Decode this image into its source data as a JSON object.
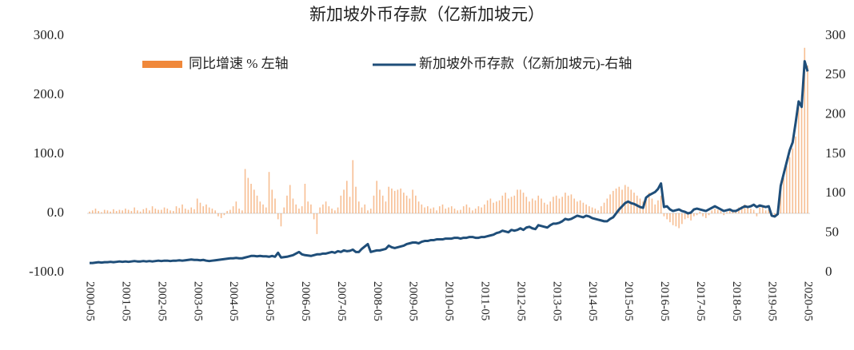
{
  "chart_data": {
    "type": "bar",
    "title": "新加坡外币存款（亿新加坡元）",
    "categories": [
      "2000-05",
      null,
      null,
      null,
      null,
      null,
      null,
      null,
      null,
      null,
      null,
      null,
      "2001-05",
      null,
      null,
      null,
      null,
      null,
      null,
      null,
      null,
      null,
      null,
      null,
      "2002-05",
      null,
      null,
      null,
      null,
      null,
      null,
      null,
      null,
      null,
      null,
      null,
      "2003-05",
      null,
      null,
      null,
      null,
      null,
      null,
      null,
      null,
      null,
      null,
      null,
      "2004-05",
      null,
      null,
      null,
      null,
      null,
      null,
      null,
      null,
      null,
      null,
      null,
      "2005-05",
      null,
      null,
      null,
      null,
      null,
      null,
      null,
      null,
      null,
      null,
      null,
      "2006-05",
      null,
      null,
      null,
      null,
      null,
      null,
      null,
      null,
      null,
      null,
      null,
      "2007-05",
      null,
      null,
      null,
      null,
      null,
      null,
      null,
      null,
      null,
      null,
      null,
      "2008-05",
      null,
      null,
      null,
      null,
      null,
      null,
      null,
      null,
      null,
      null,
      null,
      "2009-05",
      null,
      null,
      null,
      null,
      null,
      null,
      null,
      null,
      null,
      null,
      null,
      "2010-05",
      null,
      null,
      null,
      null,
      null,
      null,
      null,
      null,
      null,
      null,
      null,
      "2011-05",
      null,
      null,
      null,
      null,
      null,
      null,
      null,
      null,
      null,
      null,
      null,
      "2012-05",
      null,
      null,
      null,
      null,
      null,
      null,
      null,
      null,
      null,
      null,
      null,
      "2013-05",
      null,
      null,
      null,
      null,
      null,
      null,
      null,
      null,
      null,
      null,
      null,
      "2014-05",
      null,
      null,
      null,
      null,
      null,
      null,
      null,
      null,
      null,
      null,
      null,
      "2015-05",
      null,
      null,
      null,
      null,
      null,
      null,
      null,
      null,
      null,
      null,
      null,
      "2016-05",
      null,
      null,
      null,
      null,
      null,
      null,
      null,
      null,
      null,
      null,
      null,
      "2017-05",
      null,
      null,
      null,
      null,
      null,
      null,
      null,
      null,
      null,
      null,
      null,
      "2018-05",
      null,
      null,
      null,
      null,
      null,
      null,
      null,
      null,
      null,
      null,
      null,
      "2019-05",
      null,
      null,
      null,
      null,
      null,
      null,
      null,
      null,
      null,
      null,
      null,
      "2020-05"
    ],
    "series": [
      {
        "name": "同比增速 % 左轴",
        "type": "bar",
        "color": "#f0883a",
        "axis": "y",
        "values": [
          3,
          5,
          8,
          4,
          2,
          6,
          5,
          3,
          7,
          4,
          6,
          5,
          8,
          6,
          4,
          10,
          5,
          3,
          7,
          9,
          5,
          12,
          8,
          6,
          6,
          10,
          8,
          5,
          4,
          12,
          9,
          15,
          8,
          6,
          10,
          7,
          25,
          18,
          12,
          15,
          10,
          8,
          5,
          -5,
          -8,
          -3,
          4,
          6,
          12,
          20,
          8,
          5,
          75,
          60,
          50,
          40,
          30,
          20,
          15,
          10,
          70,
          40,
          25,
          -10,
          -22,
          10,
          30,
          48,
          25,
          15,
          8,
          12,
          50,
          20,
          15,
          -10,
          -35,
          10,
          15,
          20,
          12,
          8,
          5,
          10,
          30,
          40,
          55,
          28,
          90,
          45,
          20,
          10,
          15,
          5,
          8,
          30,
          55,
          40,
          30,
          20,
          45,
          42,
          38,
          40,
          42,
          35,
          30,
          25,
          40,
          30,
          20,
          15,
          10,
          12,
          8,
          10,
          5,
          12,
          15,
          8,
          10,
          12,
          8,
          5,
          6,
          12,
          15,
          10,
          5,
          8,
          12,
          10,
          15,
          22,
          25,
          18,
          20,
          22,
          30,
          35,
          25,
          28,
          30,
          40,
          40,
          35,
          28,
          20,
          25,
          22,
          30,
          25,
          18,
          15,
          20,
          28,
          30,
          25,
          28,
          35,
          30,
          32,
          25,
          20,
          22,
          18,
          15,
          12,
          10,
          8,
          5,
          12,
          18,
          25,
          32,
          38,
          42,
          45,
          40,
          48,
          45,
          40,
          35,
          30,
          25,
          20,
          28,
          35,
          25,
          15,
          22,
          30,
          -5,
          -10,
          -15,
          -20,
          -22,
          -25,
          -18,
          -10,
          -8,
          -12,
          -5,
          -3,
          3,
          -5,
          -8,
          -3,
          5,
          8,
          6,
          4,
          -3,
          2,
          5,
          3,
          5,
          10,
          12,
          15,
          10,
          8,
          6,
          -5,
          10,
          12,
          5,
          6,
          -5,
          -3,
          2,
          45,
          60,
          80,
          95,
          110,
          130,
          180,
          200,
          280,
          250
        ]
      },
      {
        "name": "新加坡外币存款（亿新加坡元)-右轴",
        "type": "line",
        "color": "#1f4e79",
        "axis": "y2",
        "values": [
          12,
          12,
          12.5,
          13,
          12.5,
          13,
          13,
          13.5,
          13,
          13.5,
          14,
          13.5,
          14,
          13.5,
          14,
          14.5,
          14,
          14,
          14.5,
          14,
          14.5,
          14,
          14.5,
          15,
          14.5,
          15,
          15,
          14.5,
          15,
          15,
          15.5,
          15,
          15.5,
          16,
          16.5,
          16,
          16,
          15.5,
          16,
          15,
          14.5,
          15,
          15.5,
          16,
          16.5,
          17,
          17.5,
          18,
          18,
          18.5,
          18,
          18,
          19,
          20,
          21,
          21,
          20.5,
          21,
          20.5,
          20.5,
          20,
          21,
          20,
          25,
          19,
          19.5,
          20,
          21,
          22,
          24,
          26,
          23,
          22,
          21.5,
          21,
          22,
          23,
          23,
          24,
          24,
          25,
          26,
          25,
          27,
          26,
          28,
          27,
          27.5,
          29,
          26,
          26,
          30,
          33,
          36,
          26,
          27,
          28,
          28,
          29,
          30,
          34,
          32,
          31,
          32,
          33,
          34,
          36,
          37,
          38,
          38,
          37,
          39,
          40,
          40,
          41,
          41,
          42,
          42,
          42,
          43,
          43,
          43,
          44,
          44,
          43,
          44,
          44,
          45,
          45,
          44,
          44,
          45,
          45,
          46,
          47,
          48,
          50,
          51,
          53,
          52,
          51,
          54,
          53,
          54,
          56,
          54,
          57,
          58,
          56,
          55,
          60,
          59,
          58,
          57,
          60,
          62,
          62,
          63,
          65,
          68,
          67,
          68,
          70,
          72,
          71,
          70,
          72,
          71,
          69,
          68,
          67,
          66,
          65,
          65,
          68,
          70,
          75,
          80,
          84,
          88,
          90,
          88,
          87,
          85,
          83,
          82,
          95,
          98,
          100,
          102,
          106,
          113,
          83,
          84,
          80,
          78,
          79,
          80,
          78,
          77,
          75,
          76,
          80,
          81,
          80,
          79,
          78,
          80,
          82,
          84,
          82,
          80,
          78,
          79,
          80,
          78,
          78,
          80,
          82,
          84,
          83,
          84,
          86,
          83,
          85,
          84,
          83,
          84,
          72,
          71,
          74,
          110,
          125,
          140,
          155,
          165,
          190,
          217,
          210,
          268,
          255
        ]
      }
    ],
    "ylim": [
      -100,
      300
    ],
    "yticks": [
      {
        "value": -100,
        "label": "-100.0"
      },
      {
        "value": 0,
        "label": "0.0"
      },
      {
        "value": 100,
        "label": "100.0"
      },
      {
        "value": 200,
        "label": "200.0"
      },
      {
        "value": 300,
        "label": "300.0"
      }
    ],
    "y2lim": [
      0,
      300
    ],
    "y2ticks": [
      0,
      50,
      100,
      150,
      200,
      250,
      300
    ],
    "legend": "top"
  }
}
